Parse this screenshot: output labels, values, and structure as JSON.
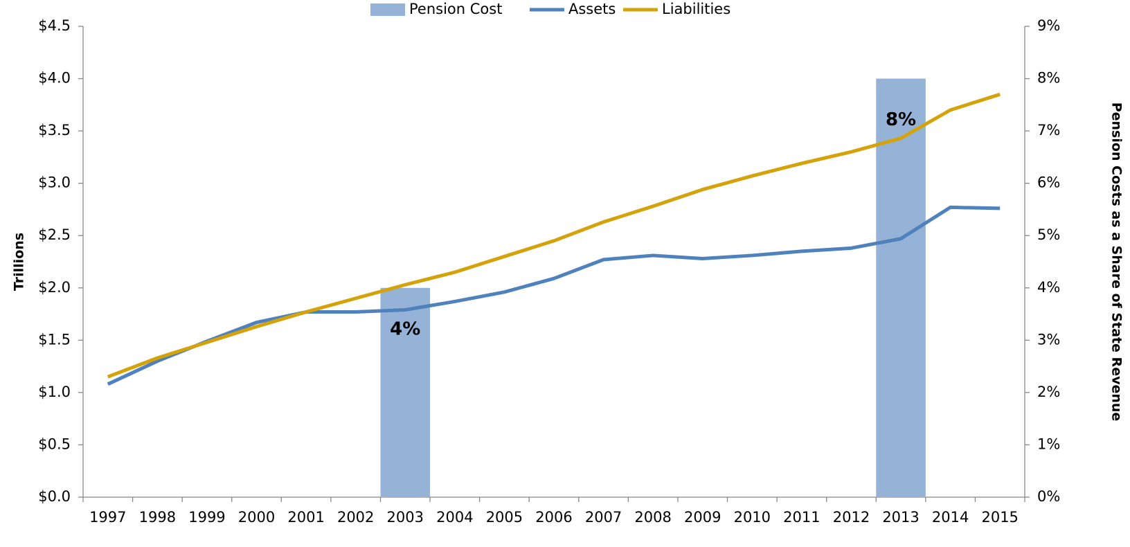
{
  "chart_data": {
    "type": "combo",
    "categories": [
      "1997",
      "1998",
      "1999",
      "2000",
      "2001",
      "2002",
      "2003",
      "2004",
      "2005",
      "2006",
      "2007",
      "2008",
      "2009",
      "2010",
      "2011",
      "2012",
      "2013",
      "2014",
      "2015"
    ],
    "series": [
      {
        "name": "Pension Cost",
        "type": "bar",
        "axis": "y2",
        "color": "#95b3d7",
        "values": [
          null,
          null,
          null,
          null,
          null,
          null,
          4,
          null,
          null,
          null,
          null,
          null,
          null,
          null,
          null,
          null,
          8,
          null,
          null
        ],
        "value_labels": [
          null,
          null,
          null,
          null,
          null,
          null,
          "4%",
          null,
          null,
          null,
          null,
          null,
          null,
          null,
          null,
          null,
          "8%",
          null,
          null
        ]
      },
      {
        "name": "Assets",
        "type": "line",
        "color": "#4f81bd",
        "values": [
          1.08,
          1.3,
          1.49,
          1.67,
          1.77,
          1.77,
          1.79,
          1.87,
          1.96,
          2.09,
          2.27,
          2.31,
          2.28,
          2.31,
          2.35,
          2.38,
          2.47,
          2.77,
          2.76
        ]
      },
      {
        "name": "Liabilities",
        "type": "line",
        "color": "#d4a20a",
        "values": [
          1.15,
          1.33,
          1.48,
          1.63,
          1.77,
          1.9,
          2.03,
          2.15,
          2.3,
          2.45,
          2.63,
          2.78,
          2.94,
          3.07,
          3.19,
          3.3,
          3.43,
          3.7,
          3.85
        ]
      }
    ],
    "ylabel": "Trillions",
    "y2label": "Pension Costs as a Share of State Revenue",
    "ylim": [
      0,
      4.5
    ],
    "yticks": [
      {
        "value": 0,
        "label": "$0.0"
      },
      {
        "value": 0.5,
        "label": "$0.5"
      },
      {
        "value": 1,
        "label": "$1.0"
      },
      {
        "value": 1.5,
        "label": "$1.5"
      },
      {
        "value": 2,
        "label": "$2.0"
      },
      {
        "value": 2.5,
        "label": "$2.5"
      },
      {
        "value": 3,
        "label": "$3.0"
      },
      {
        "value": 3.5,
        "label": "$3.5"
      },
      {
        "value": 4,
        "label": "$4.0"
      },
      {
        "value": 4.5,
        "label": "$4.5"
      }
    ],
    "y2lim": [
      0,
      9
    ],
    "y2ticks": [
      {
        "value": 0,
        "label": "0%"
      },
      {
        "value": 1,
        "label": "1%"
      },
      {
        "value": 2,
        "label": "2%"
      },
      {
        "value": 3,
        "label": "3%"
      },
      {
        "value": 4,
        "label": "4%"
      },
      {
        "value": 5,
        "label": "5%"
      },
      {
        "value": 6,
        "label": "6%"
      },
      {
        "value": 7,
        "label": "7%"
      },
      {
        "value": 8,
        "label": "8%"
      },
      {
        "value": 9,
        "label": "9%"
      }
    ],
    "legend": "top"
  }
}
